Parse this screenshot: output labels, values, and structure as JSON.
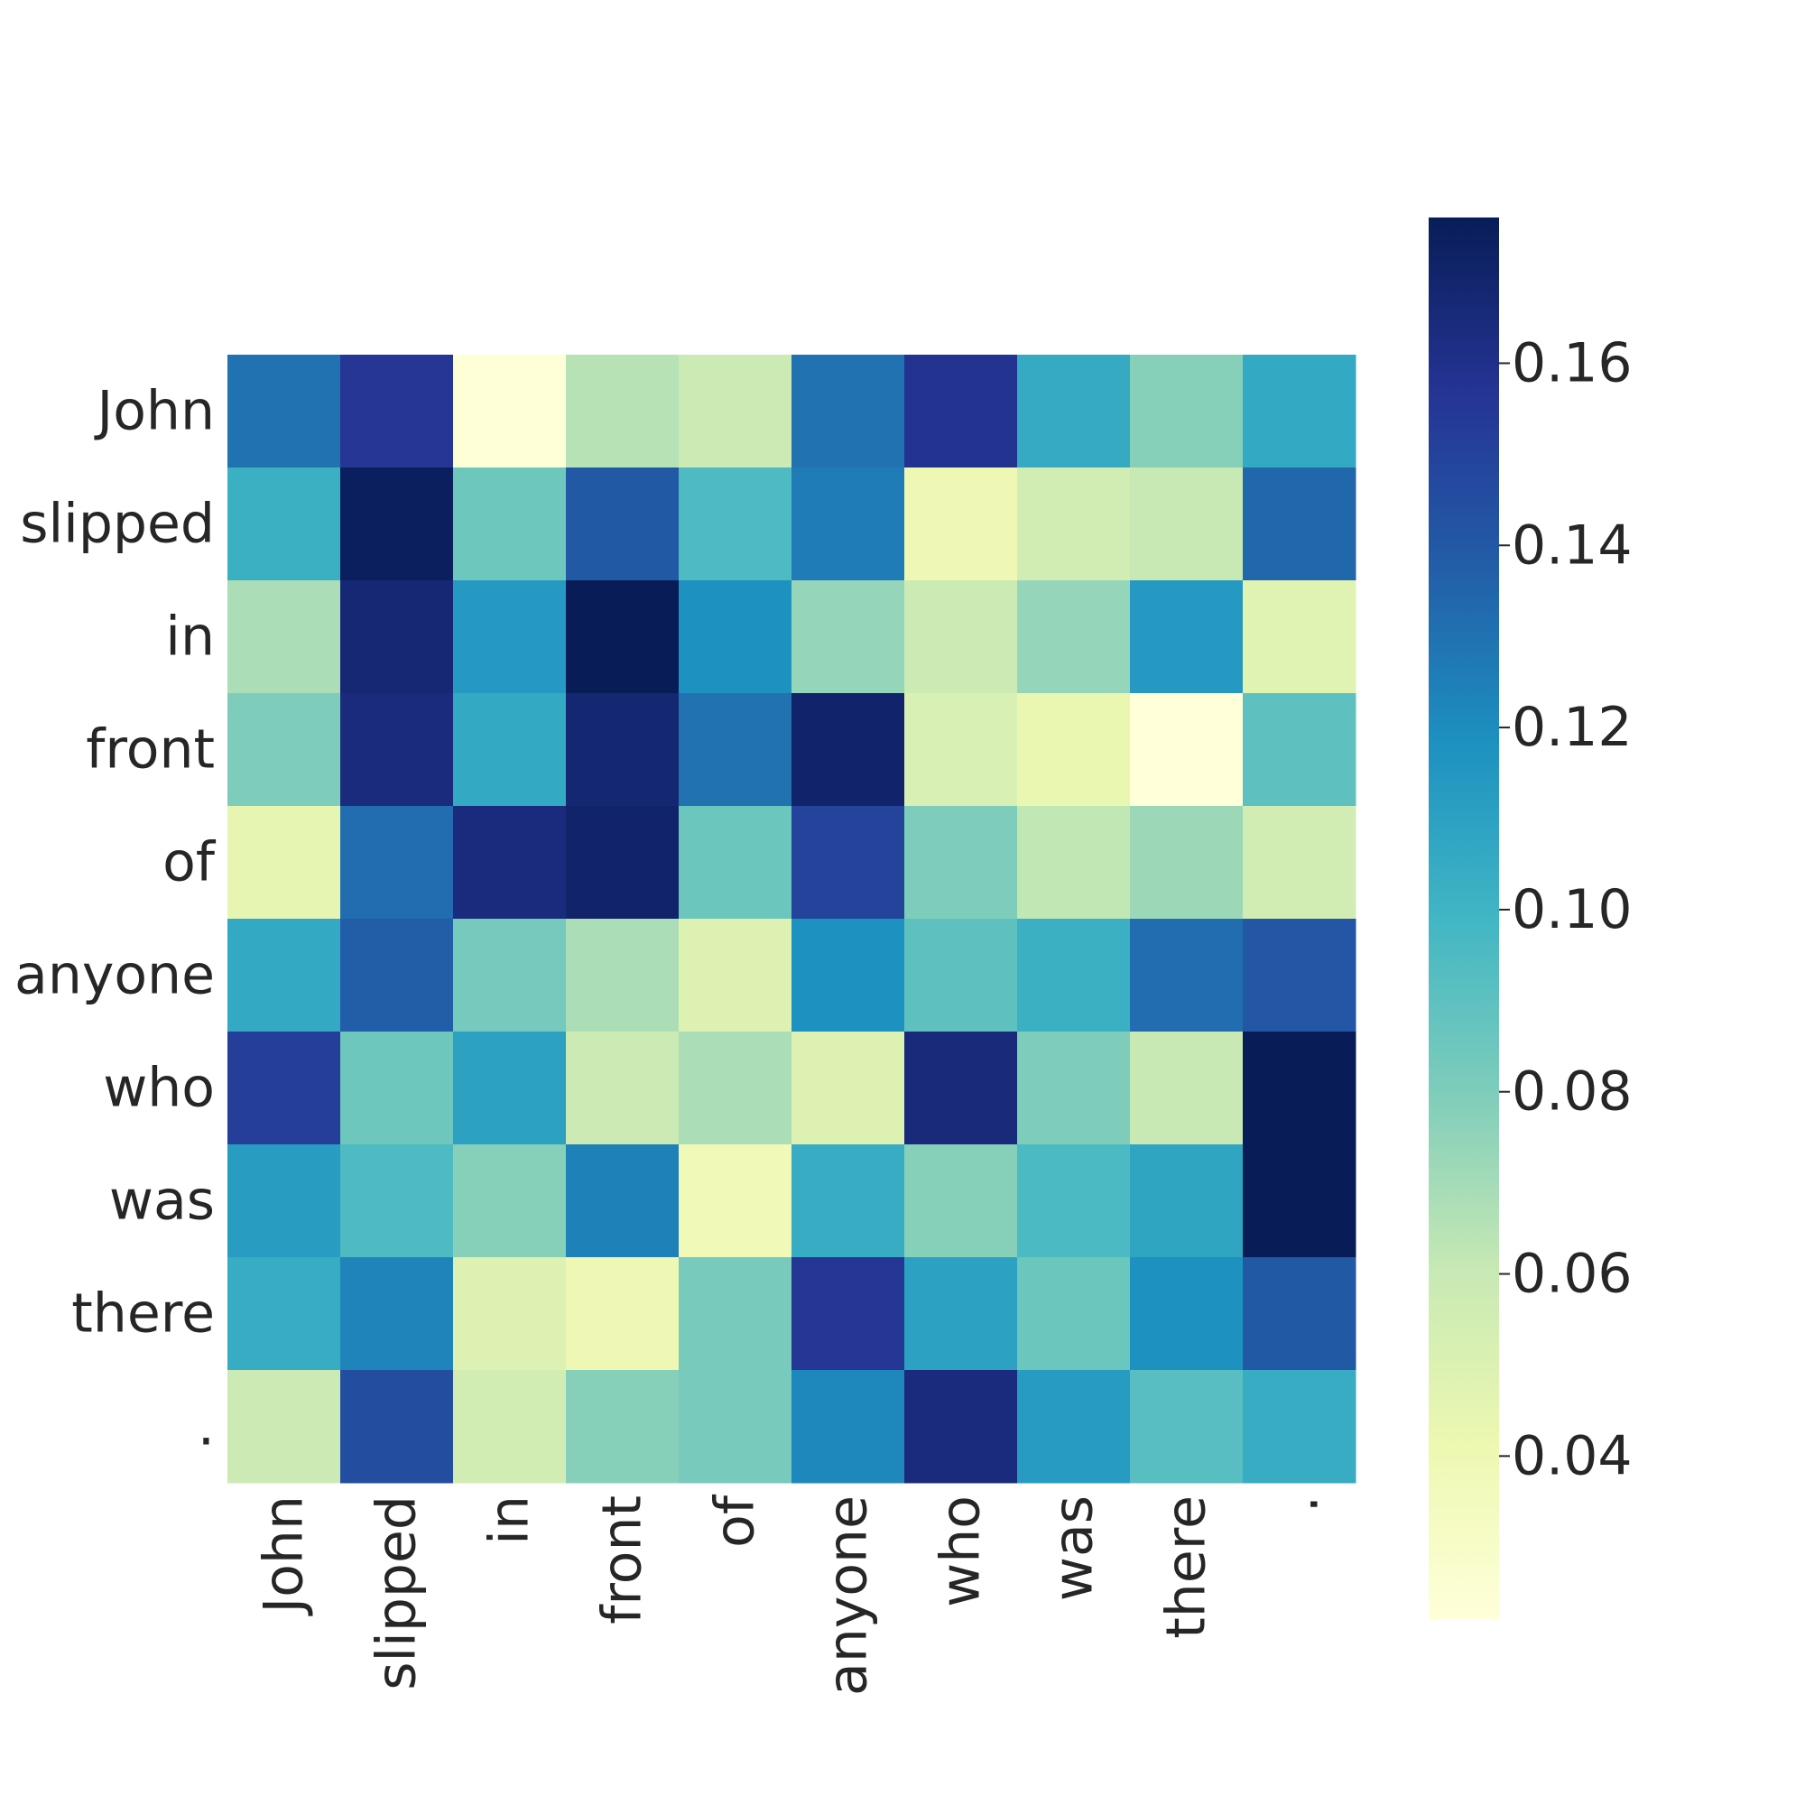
{
  "chart_data": {
    "type": "heatmap",
    "title": "",
    "xlabel": "",
    "ylabel": "",
    "x_labels": [
      "John",
      "slipped",
      "in",
      "front",
      "of",
      "anyone",
      "who",
      "was",
      "there",
      "."
    ],
    "y_labels": [
      "John",
      "slipped",
      "in",
      "front",
      "of",
      "anyone",
      "who",
      "was",
      "there",
      "."
    ],
    "values": [
      [
        0.13,
        0.156,
        0.023,
        0.065,
        0.058,
        0.13,
        0.158,
        0.105,
        0.078,
        0.106
      ],
      [
        0.102,
        0.174,
        0.085,
        0.14,
        0.095,
        0.126,
        0.04,
        0.055,
        0.06,
        0.134
      ],
      [
        0.068,
        0.167,
        0.114,
        0.176,
        0.118,
        0.074,
        0.058,
        0.074,
        0.114,
        0.048
      ],
      [
        0.08,
        0.164,
        0.106,
        0.168,
        0.13,
        0.17,
        0.052,
        0.043,
        0.022,
        0.09
      ],
      [
        0.045,
        0.132,
        0.164,
        0.17,
        0.086,
        0.15,
        0.08,
        0.062,
        0.072,
        0.055
      ],
      [
        0.106,
        0.138,
        0.083,
        0.068,
        0.05,
        0.118,
        0.09,
        0.102,
        0.132,
        0.141
      ],
      [
        0.152,
        0.085,
        0.11,
        0.058,
        0.068,
        0.05,
        0.165,
        0.08,
        0.06,
        0.176
      ],
      [
        0.112,
        0.095,
        0.078,
        0.124,
        0.038,
        0.104,
        0.078,
        0.096,
        0.108,
        0.176
      ],
      [
        0.104,
        0.123,
        0.05,
        0.04,
        0.082,
        0.156,
        0.11,
        0.086,
        0.118,
        0.14
      ],
      [
        0.058,
        0.145,
        0.055,
        0.078,
        0.082,
        0.122,
        0.164,
        0.113,
        0.092,
        0.104
      ]
    ],
    "colorbar": {
      "min": 0.022,
      "max": 0.176,
      "ticks": [
        "0.04",
        "0.06",
        "0.08",
        "0.10",
        "0.12",
        "0.14",
        "0.16"
      ],
      "colormap": "YlGnBu"
    },
    "grid": false,
    "legend": "colorbar-right"
  },
  "colors": {
    "text": "#262626",
    "colormap_stops": [
      "#ffffd9",
      "#edf8b1",
      "#c7e9b4",
      "#7fcdbb",
      "#41b6c4",
      "#1d91c0",
      "#225ea8",
      "#253494",
      "#081d58"
    ]
  }
}
